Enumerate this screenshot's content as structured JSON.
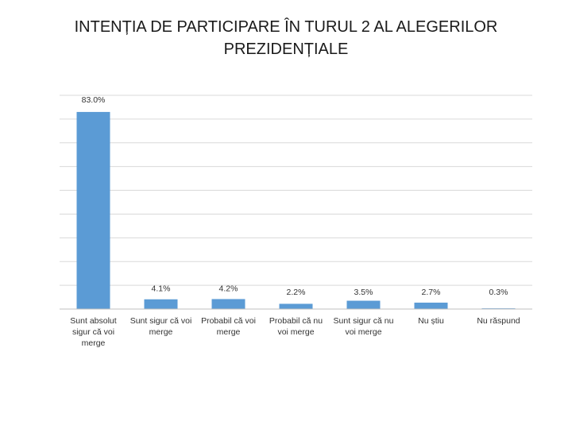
{
  "chart_data": {
    "type": "bar",
    "title": "INTENȚIA DE PARTICIPARE ÎN TURUL 2 AL ALEGERILOR\nPREZIDENȚIALE",
    "categories": [
      "Sunt absolut sigur că voi merge",
      "Sunt sigur că voi merge",
      "Probabil că voi merge",
      "Probabil că nu voi merge",
      "Sunt sigur că nu voi merge",
      "Nu știu",
      "Nu răspund"
    ],
    "category_lines": [
      [
        "Sunt absolut",
        "sigur că voi",
        "merge"
      ],
      [
        "Sunt sigur că voi",
        "merge"
      ],
      [
        "Probabil că voi",
        "merge"
      ],
      [
        "Probabil că nu",
        "voi merge"
      ],
      [
        "Sunt sigur că nu",
        "voi merge"
      ],
      [
        "Nu știu"
      ],
      [
        "Nu răspund"
      ]
    ],
    "values": [
      83.0,
      4.1,
      4.2,
      2.2,
      3.5,
      2.7,
      0.3
    ],
    "data_labels": [
      "83.0%",
      "4.1%",
      "4.2%",
      "2.2%",
      "3.5%",
      "2.7%",
      "0.3%"
    ],
    "ylim": [
      0,
      90
    ],
    "grid": true,
    "legend": "none",
    "bar_color": "#5b9bd5"
  }
}
